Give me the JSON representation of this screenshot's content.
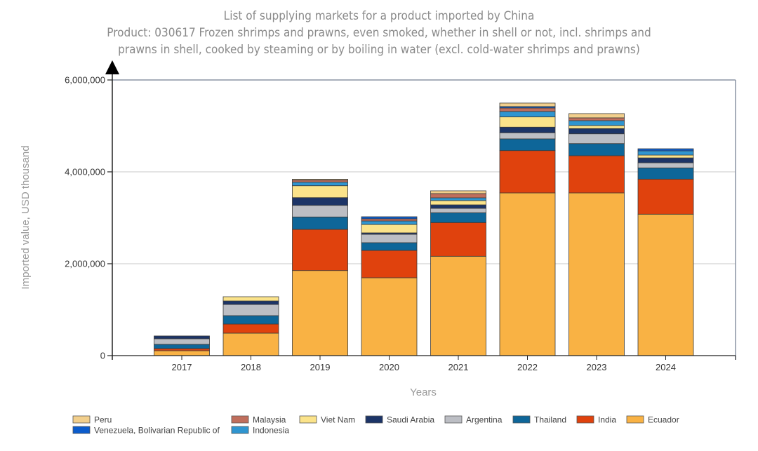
{
  "chart_data": {
    "type": "bar",
    "stacked": true,
    "title": "List of supplying markets for a product imported by China",
    "subtitle_line1": "Product: 030617 Frozen shrimps and prawns, even smoked, whether in shell or not, incl. shrimps and",
    "subtitle_line2": "prawns in shell, cooked by steaming or by boiling in water (excl. cold-water shrimps and prawns)",
    "xlabel": "Years",
    "ylabel": "Imported value, USD thousand",
    "ylim": [
      0,
      6000000
    ],
    "yticks": [
      0,
      2000000,
      4000000,
      6000000
    ],
    "ytick_labels": [
      "0",
      "2,000,000",
      "4,000,000",
      "6,000,000"
    ],
    "grid": "horizontal",
    "legend_position": "bottom",
    "categories": [
      "2017",
      "2018",
      "2019",
      "2020",
      "2021",
      "2022",
      "2023",
      "2024"
    ],
    "series": [
      {
        "name": "Ecuador",
        "color": "#f9b244",
        "values": [
          107000,
          489000,
          1852000,
          1695000,
          2163000,
          3542000,
          3542000,
          3079000
        ]
      },
      {
        "name": "India",
        "color": "#e0420d",
        "values": [
          46000,
          198000,
          896000,
          595000,
          733000,
          921000,
          809000,
          763000
        ]
      },
      {
        "name": "Thailand",
        "color": "#0e6699",
        "values": [
          92000,
          183000,
          270000,
          168000,
          214000,
          255000,
          264000,
          244000
        ]
      },
      {
        "name": "Argentina",
        "color": "#bcbec4",
        "values": [
          122000,
          244000,
          253000,
          183000,
          96000,
          133000,
          214000,
          111000
        ]
      },
      {
        "name": "Saudi Arabia",
        "color": "#1c3467",
        "values": [
          61000,
          76000,
          168000,
          31000,
          76000,
          122000,
          113000,
          107000
        ]
      },
      {
        "name": "Viet Nam",
        "color": "#fbe38a",
        "values": [
          0,
          92000,
          260000,
          183000,
          92000,
          223000,
          66000,
          61000
        ]
      },
      {
        "name": "Indonesia",
        "color": "#2f95d0",
        "values": [
          0,
          0,
          76000,
          76000,
          61000,
          118000,
          107000,
          92000
        ]
      },
      {
        "name": "Malaysia",
        "color": "#c06e5c",
        "values": [
          0,
          0,
          46000,
          46000,
          92000,
          76000,
          61000,
          0
        ]
      },
      {
        "name": "Venezuela, Bolivarian Republic of",
        "color": "#0b5ccc",
        "values": [
          0,
          0,
          0,
          46000,
          0,
          31000,
          0,
          46000
        ]
      },
      {
        "name": "Peru",
        "color": "#f2cf8c",
        "values": [
          0,
          0,
          20000,
          0,
          61000,
          76000,
          92000,
          0
        ]
      }
    ],
    "legend": [
      {
        "name": "Peru",
        "color": "#f2cf8c",
        "row": 0
      },
      {
        "name": "Malaysia",
        "color": "#c06e5c",
        "row": 0
      },
      {
        "name": "Viet Nam",
        "color": "#fbe38a",
        "row": 0
      },
      {
        "name": "Saudi Arabia",
        "color": "#1c3467",
        "row": 0
      },
      {
        "name": "Argentina",
        "color": "#bcbec4",
        "row": 0
      },
      {
        "name": "Thailand",
        "color": "#0e6699",
        "row": 0
      },
      {
        "name": "India",
        "color": "#e0420d",
        "row": 0
      },
      {
        "name": "Ecuador",
        "color": "#f9b244",
        "row": 0
      },
      {
        "name": "Venezuela, Bolivarian Republic of",
        "color": "#0b5ccc",
        "row": 1
      },
      {
        "name": "Indonesia",
        "color": "#2f95d0",
        "row": 1
      }
    ]
  }
}
